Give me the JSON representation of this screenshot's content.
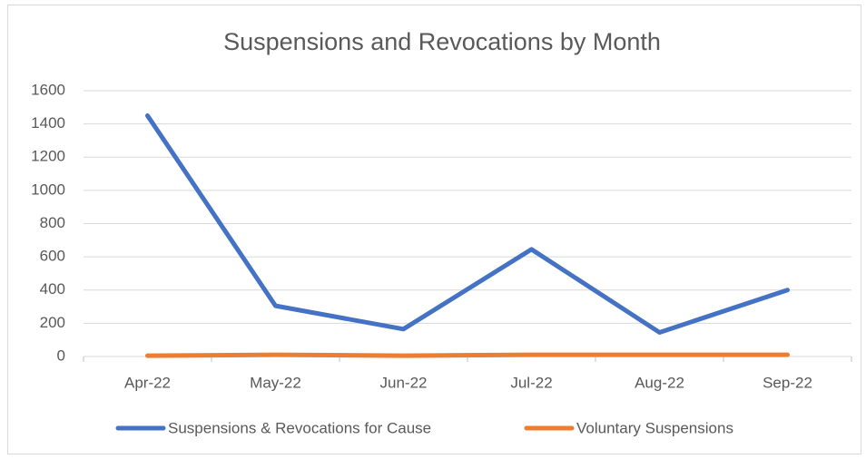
{
  "chart_data": {
    "type": "line",
    "title": "Suspensions and Revocations by Month",
    "categories": [
      "Apr-22",
      "May-22",
      "Jun-22",
      "Jul-22",
      "Aug-22",
      "Sep-22"
    ],
    "series": [
      {
        "name": "Suspensions & Revocations for Cause",
        "color": "#4472c4",
        "values": [
          1450,
          305,
          165,
          645,
          145,
          400
        ]
      },
      {
        "name": "Voluntary Suspensions",
        "color": "#ed7d31",
        "values": [
          5,
          10,
          5,
          10,
          10,
          10
        ]
      }
    ],
    "ylim": [
      0,
      1600
    ],
    "yticks": [
      0,
      200,
      400,
      600,
      800,
      1000,
      1200,
      1400,
      1600
    ],
    "grid": true,
    "legend": "bottom"
  }
}
